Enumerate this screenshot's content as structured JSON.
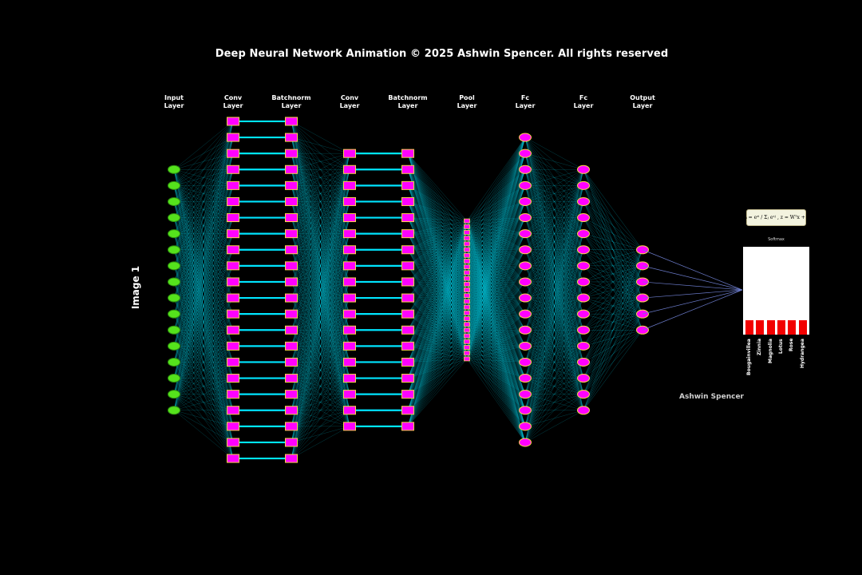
{
  "title": "Deep Neural Network Animation © 2025 Ashwin Spencer. All rights reserved",
  "side_label": "Image 1",
  "author": "Ashwin Spencer",
  "colors": {
    "background": "#000000",
    "input_node": "#55e21c",
    "node_fill": "#ff00ff",
    "node_outline": "#ffd54a",
    "connection": "#00e5ff",
    "softmax_bar": "#f20000"
  },
  "layers": [
    {
      "line1": "Input",
      "line2": "Layer",
      "shape": "ellipse",
      "nodes": 16
    },
    {
      "line1": "Conv",
      "line2": "Layer",
      "shape": "rect",
      "nodes": 22
    },
    {
      "line1": "Batchnorm",
      "line2": "Layer",
      "shape": "rect",
      "nodes": 22
    },
    {
      "line1": "Conv",
      "line2": "Layer",
      "shape": "rect",
      "nodes": 18
    },
    {
      "line1": "Batchnorm",
      "line2": "Layer",
      "shape": "rect",
      "nodes": 18
    },
    {
      "line1": "Pool",
      "line2": "Layer",
      "shape": "rect-small",
      "nodes": 25
    },
    {
      "line1": "Fc",
      "line2": "Layer",
      "shape": "ellipse",
      "nodes": 20
    },
    {
      "line1": "Fc",
      "line2": "Layer",
      "shape": "ellipse",
      "nodes": 16
    },
    {
      "line1": "Output",
      "line2": "Layer",
      "shape": "ellipse",
      "nodes": 6
    }
  ],
  "formula": "σᵢ = eᶻⁱ / Σⱼ eᶻʲ ,  z = Wᵀx + b",
  "softmax": {
    "title": "Softmax",
    "classes": [
      "Bougainvillea",
      "Zinnia",
      "Magnolia",
      "Lotus",
      "Rose",
      "Hydrangea"
    ],
    "values": [
      0.167,
      0.167,
      0.167,
      0.167,
      0.167,
      0.167
    ],
    "ylim": [
      0,
      1
    ]
  }
}
